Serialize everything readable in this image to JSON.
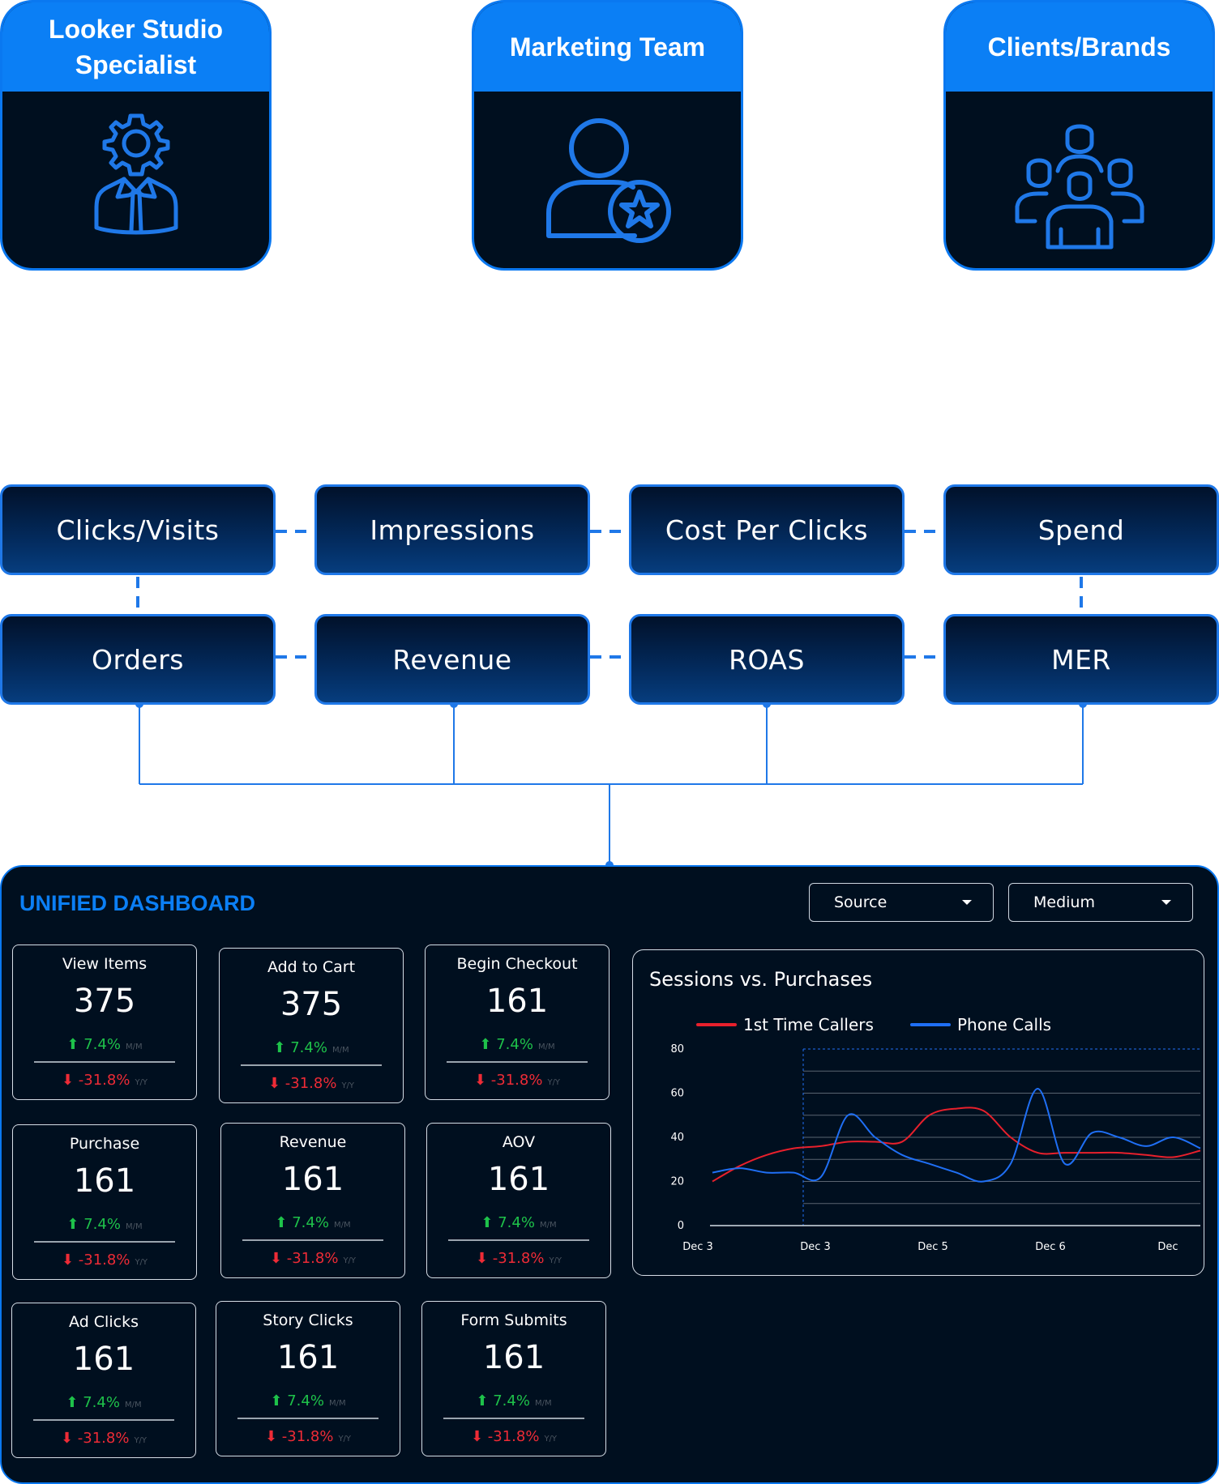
{
  "roles": [
    {
      "title": "Looker Studio Specialist",
      "icon": "specialist-gear-icon"
    },
    {
      "title": "Marketing Team",
      "icon": "user-star-icon"
    },
    {
      "title": "Clients/Brands",
      "icon": "group-people-icon"
    }
  ],
  "metrics_row1": [
    "Clicks/Visits",
    "Impressions",
    "Cost Per Clicks",
    "Spend"
  ],
  "metrics_row2": [
    "Orders",
    "Revenue",
    "ROAS",
    "MER"
  ],
  "dashboard": {
    "title": "UNIFIED DASHBOARD",
    "filters": [
      "Source",
      "Medium"
    ],
    "kpis": [
      {
        "label": "View Items",
        "value": "375",
        "up": "7.4%",
        "up_sub": "M/M",
        "down": "-31.8%",
        "down_sub": "Y/Y"
      },
      {
        "label": "Add to Cart",
        "value": "375",
        "up": "7.4%",
        "up_sub": "M/M",
        "down": "-31.8%",
        "down_sub": "Y/Y"
      },
      {
        "label": "Begin Checkout",
        "value": "161",
        "up": "7.4%",
        "up_sub": "M/M",
        "down": "-31.8%",
        "down_sub": "Y/Y"
      },
      {
        "label": "Purchase",
        "value": "161",
        "up": "7.4%",
        "up_sub": "M/M",
        "down": "-31.8%",
        "down_sub": "Y/Y"
      },
      {
        "label": "Revenue",
        "value": "161",
        "up": "7.4%",
        "up_sub": "M/M",
        "down": "-31.8%",
        "down_sub": "Y/Y"
      },
      {
        "label": "AOV",
        "value": "161",
        "up": "7.4%",
        "up_sub": "M/M",
        "down": "-31.8%",
        "down_sub": "Y/Y"
      },
      {
        "label": "Ad Clicks",
        "value": "161",
        "up": "7.4%",
        "up_sub": "M/M",
        "down": "-31.8%",
        "down_sub": "Y/Y"
      },
      {
        "label": "Story Clicks",
        "value": "161",
        "up": "7.4%",
        "up_sub": "M/M",
        "down": "-31.8%",
        "down_sub": "Y/Y"
      },
      {
        "label": "Form Submits",
        "value": "161",
        "up": "7.4%",
        "up_sub": "M/M",
        "down": "-31.8%",
        "down_sub": "Y/Y"
      }
    ]
  },
  "chart_data": {
    "type": "line",
    "title": "Sessions vs. Purchases",
    "x_tick_labels": [
      "Dec 3",
      "Dec 3",
      "Dec 5",
      "Dec 6",
      "Dec"
    ],
    "y_ticks": [
      0,
      20,
      40,
      60,
      80
    ],
    "ylim": [
      0,
      80
    ],
    "grid": true,
    "legend_position": "top",
    "series": [
      {
        "name": "1st Time Callers",
        "color": "#e8202c",
        "values": [
          20,
          27,
          32,
          35,
          36,
          38,
          38,
          38,
          50,
          53,
          52,
          40,
          33,
          33,
          33,
          33,
          32,
          31,
          34
        ]
      },
      {
        "name": "Phone Calls",
        "color": "#1f6ff5",
        "values": [
          24,
          26,
          24,
          24,
          22,
          50,
          40,
          32,
          28,
          24,
          20,
          28,
          62,
          28,
          42,
          40,
          36,
          40,
          35
        ]
      }
    ]
  },
  "colors": {
    "accent": "#0b7ff5",
    "panel": "#000f1f",
    "up": "#1ec24a",
    "down": "#ee2b36"
  }
}
